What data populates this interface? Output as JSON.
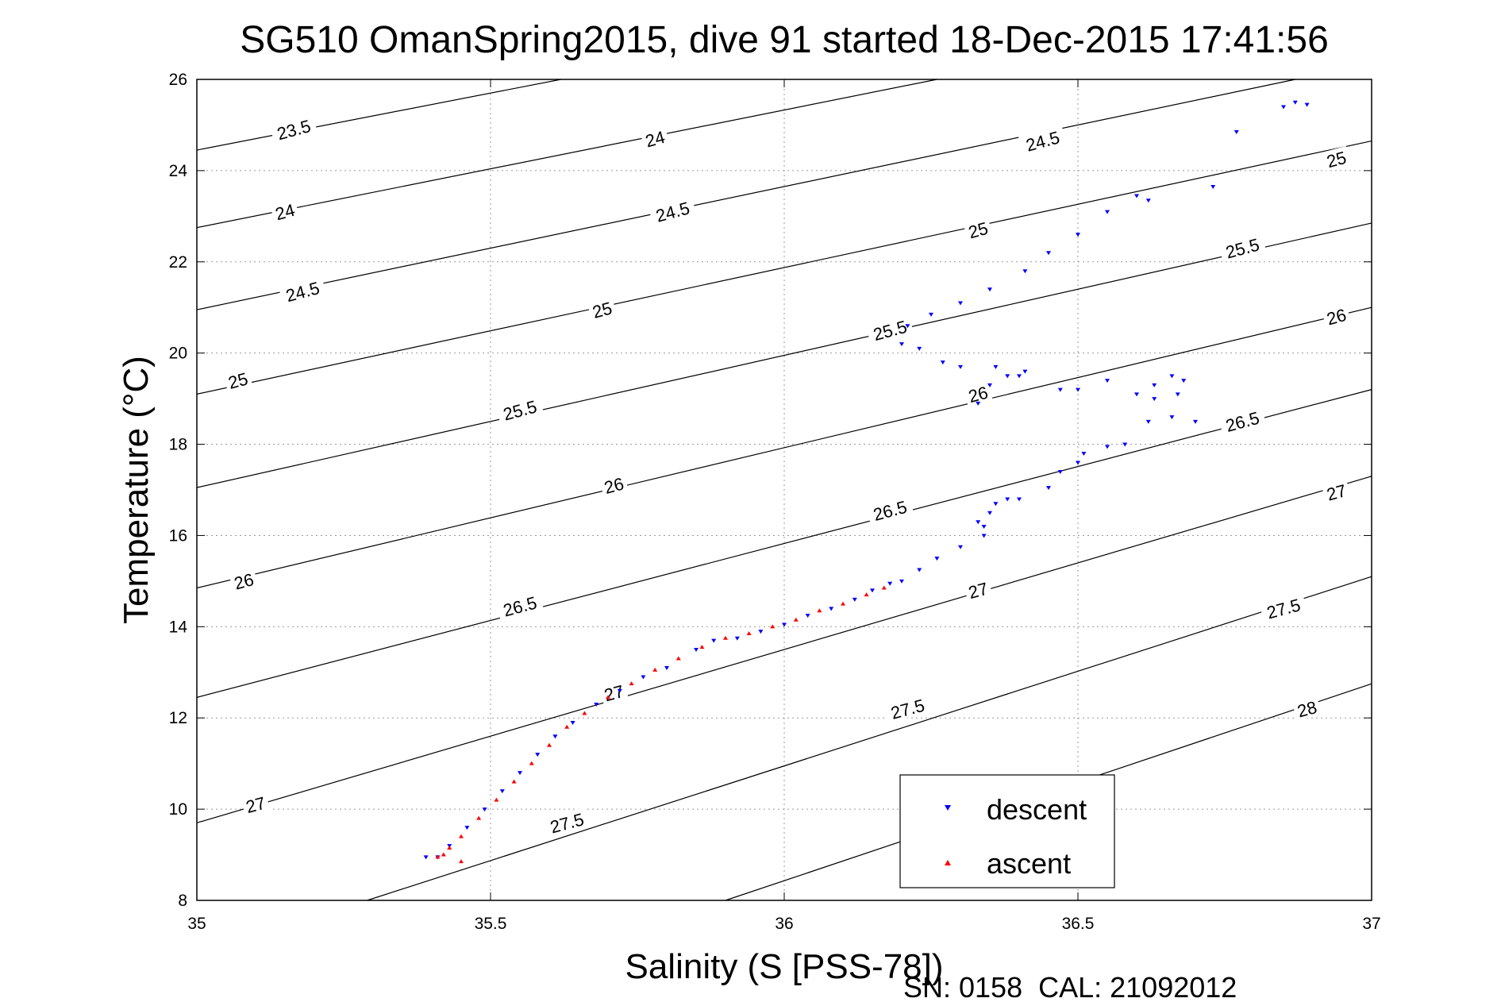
{
  "chart_data": {
    "type": "scatter",
    "title": "SG510 OmanSpring2015, dive 91 started 18-Dec-2015 17:41:56",
    "xlabel": "Salinity (S [PSS-78])",
    "ylabel": "Temperature (°C)",
    "footer": "SN: 0158  CAL: 21092012",
    "xlim": [
      35,
      37
    ],
    "ylim": [
      8,
      26
    ],
    "xticks": [
      "35",
      "35.5",
      "36",
      "36.5",
      "37"
    ],
    "yticks": [
      "8",
      "10",
      "12",
      "14",
      "16",
      "18",
      "20",
      "22",
      "24",
      "26"
    ],
    "grid": true,
    "legend_position": "bottom-right",
    "contour_lines": [
      {
        "label": "23.5",
        "points": [
          [
            35.0,
            24.45
          ],
          [
            35.62,
            26.0
          ]
        ]
      },
      {
        "label": "24",
        "points": [
          [
            35.0,
            22.75
          ],
          [
            36.26,
            26.0
          ]
        ]
      },
      {
        "label": "24.5",
        "points": [
          [
            35.0,
            20.95
          ],
          [
            36.87,
            26.0
          ]
        ]
      },
      {
        "label": "25",
        "points": [
          [
            35.0,
            19.1
          ],
          [
            37.0,
            24.65
          ]
        ]
      },
      {
        "label": "25.5",
        "points": [
          [
            35.0,
            17.05
          ],
          [
            37.0,
            22.85
          ]
        ]
      },
      {
        "label": "26",
        "points": [
          [
            35.0,
            14.85
          ],
          [
            37.0,
            21.0
          ]
        ]
      },
      {
        "label": "26.5",
        "points": [
          [
            35.0,
            12.45
          ],
          [
            37.0,
            19.2
          ]
        ]
      },
      {
        "label": "27",
        "points": [
          [
            35.0,
            9.7
          ],
          [
            37.0,
            17.3
          ]
        ]
      },
      {
        "label": "27.5",
        "points": [
          [
            35.29,
            8.0
          ],
          [
            37.0,
            15.1
          ]
        ]
      },
      {
        "label": "28",
        "points": [
          [
            35.9,
            8.0
          ],
          [
            37.0,
            12.75
          ]
        ]
      }
    ],
    "contour_labels": [
      {
        "text": "23.5",
        "x": 35.165,
        "y": 24.9
      },
      {
        "text": "24",
        "x": 35.78,
        "y": 24.7
      },
      {
        "text": "24.5",
        "x": 36.44,
        "y": 24.65
      },
      {
        "text": "25",
        "x": 36.94,
        "y": 24.25
      },
      {
        "text": "24",
        "x": 35.15,
        "y": 23.1
      },
      {
        "text": "24.5",
        "x": 35.81,
        "y": 23.1
      },
      {
        "text": "25",
        "x": 36.33,
        "y": 22.7
      },
      {
        "text": "24.5",
        "x": 35.18,
        "y": 21.35
      },
      {
        "text": "25",
        "x": 35.69,
        "y": 20.95
      },
      {
        "text": "25.5",
        "x": 36.78,
        "y": 22.3
      },
      {
        "text": "25",
        "x": 35.07,
        "y": 19.4
      },
      {
        "text": "25.5",
        "x": 36.18,
        "y": 20.5
      },
      {
        "text": "26",
        "x": 36.94,
        "y": 20.8
      },
      {
        "text": "25.5",
        "x": 35.55,
        "y": 18.75
      },
      {
        "text": "26",
        "x": 36.33,
        "y": 19.1
      },
      {
        "text": "26.5",
        "x": 36.78,
        "y": 18.5
      },
      {
        "text": "26",
        "x": 35.71,
        "y": 17.1
      },
      {
        "text": "26.5",
        "x": 36.18,
        "y": 16.55
      },
      {
        "text": "27",
        "x": 36.94,
        "y": 16.95
      },
      {
        "text": "26",
        "x": 35.08,
        "y": 15.0
      },
      {
        "text": "26.5",
        "x": 35.55,
        "y": 14.45
      },
      {
        "text": "27",
        "x": 36.33,
        "y": 14.8
      },
      {
        "text": "27.5",
        "x": 36.85,
        "y": 14.4
      },
      {
        "text": "27",
        "x": 35.71,
        "y": 12.55
      },
      {
        "text": "27.5",
        "x": 36.21,
        "y": 12.2
      },
      {
        "text": "28",
        "x": 36.89,
        "y": 12.2
      },
      {
        "text": "27",
        "x": 35.1,
        "y": 10.1
      },
      {
        "text": "27.5",
        "x": 35.63,
        "y": 9.7
      }
    ],
    "series": [
      {
        "name": "descent",
        "color": "#0000ff",
        "marker": "triangle-down",
        "x": [
          35.39,
          35.41,
          35.43,
          35.46,
          35.49,
          35.52,
          35.55,
          35.58,
          35.61,
          35.64,
          35.68,
          35.72,
          35.76,
          35.8,
          35.85,
          35.88,
          35.92,
          35.96,
          36.0,
          36.04,
          36.08,
          36.12,
          36.15,
          36.18,
          36.2,
          36.23,
          36.26,
          36.3,
          36.34,
          36.33,
          36.35,
          36.34,
          36.36,
          36.38,
          36.4,
          36.45,
          36.47,
          36.5,
          36.51,
          36.55,
          36.58,
          36.62,
          36.63,
          36.66,
          36.67,
          36.68,
          36.7,
          36.66,
          36.63,
          36.6,
          36.55,
          36.5,
          36.47,
          36.41,
          36.4,
          36.36,
          36.38,
          36.35,
          36.33,
          36.3,
          36.27,
          36.23,
          36.2,
          36.21,
          36.25,
          36.3,
          36.35,
          36.41,
          36.45,
          36.5,
          36.55,
          36.6,
          36.62,
          36.73,
          36.77,
          36.85,
          36.87,
          36.89
        ],
        "y": [
          8.95,
          8.95,
          9.2,
          9.6,
          10.0,
          10.4,
          10.8,
          11.2,
          11.6,
          11.9,
          12.3,
          12.6,
          12.9,
          13.1,
          13.5,
          13.7,
          13.75,
          13.9,
          14.05,
          14.25,
          14.4,
          14.6,
          14.8,
          14.95,
          15.0,
          15.25,
          15.5,
          15.75,
          16.0,
          16.3,
          16.5,
          16.2,
          16.7,
          16.8,
          16.8,
          17.05,
          17.4,
          17.6,
          17.8,
          17.95,
          18.0,
          18.5,
          19.0,
          18.6,
          19.1,
          19.4,
          18.5,
          19.5,
          19.3,
          19.1,
          19.4,
          19.2,
          19.2,
          19.6,
          19.5,
          19.7,
          19.5,
          19.3,
          18.9,
          19.7,
          19.8,
          20.1,
          20.2,
          20.6,
          20.85,
          21.1,
          21.4,
          21.8,
          22.2,
          22.6,
          23.1,
          23.45,
          23.35,
          23.65,
          24.85,
          25.4,
          25.5,
          25.45
        ]
      },
      {
        "name": "ascent",
        "color": "#ff0000",
        "marker": "triangle-up",
        "x": [
          35.41,
          35.43,
          35.45,
          35.48,
          35.51,
          35.54,
          35.57,
          35.6,
          35.63,
          35.66,
          35.7,
          35.74,
          35.78,
          35.82,
          35.86,
          35.9,
          35.94,
          35.98,
          36.02,
          36.06,
          36.1,
          36.14,
          36.17,
          35.45,
          35.42
        ],
        "y": [
          8.95,
          9.15,
          9.4,
          9.8,
          10.2,
          10.6,
          11.0,
          11.4,
          11.8,
          12.1,
          12.45,
          12.75,
          13.05,
          13.3,
          13.55,
          13.75,
          13.85,
          14.0,
          14.15,
          14.35,
          14.5,
          14.7,
          14.85,
          8.85,
          9.0
        ]
      }
    ]
  }
}
